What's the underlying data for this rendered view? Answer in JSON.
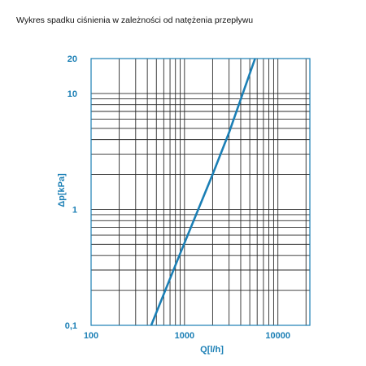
{
  "chart_data": {
    "type": "line",
    "title": "Wykres spadku ciśnienia w zależności od natężenia przepływu",
    "xlabel": "Q[l/h]",
    "ylabel": "Δp[kPa]",
    "x_scale": "log",
    "y_scale": "log",
    "xlim": [
      100,
      22000
    ],
    "ylim": [
      0.1,
      20
    ],
    "x_ticks": [
      {
        "value": 100,
        "label": "100"
      },
      {
        "value": 1000,
        "label": "1000"
      },
      {
        "value": 10000,
        "label": "10000"
      }
    ],
    "y_ticks": [
      {
        "value": 0.1,
        "label": "0,1"
      },
      {
        "value": 1,
        "label": "1"
      },
      {
        "value": 10,
        "label": "10"
      },
      {
        "value": 20,
        "label": "20"
      }
    ],
    "grid": true,
    "series": [
      {
        "x": [
          440,
          880,
          2000,
          3000,
          5700
        ],
        "y": [
          0.1,
          0.4,
          2,
          4.6,
          20
        ]
      }
    ],
    "colors": {
      "line": "#1b7fb5",
      "axis_text": "#1b7fb5",
      "grid": "#2b2b2b",
      "frame": "#1b7fb5"
    }
  }
}
